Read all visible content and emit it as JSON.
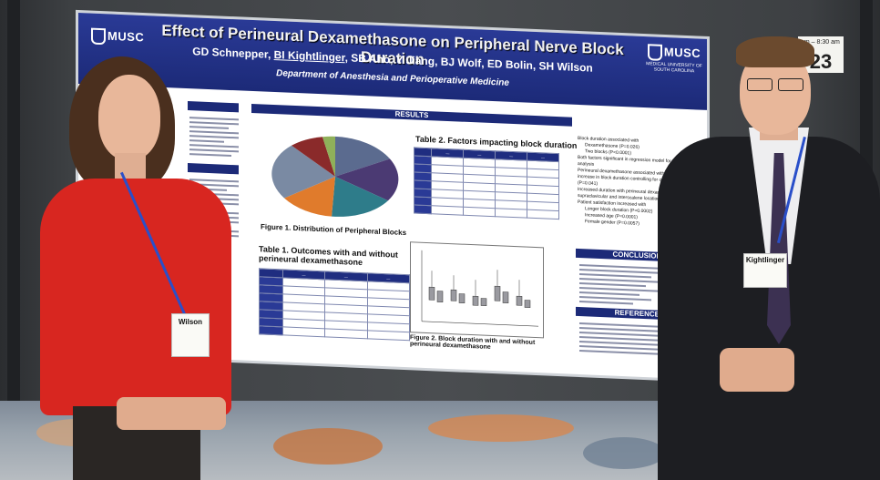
{
  "poster": {
    "title": "Effect of Perineural Dexamethasone on Peripheral Nerve Block Duration",
    "authors_before": "GD Schnepper, ",
    "authors_underlined": "BI Kightlinger",
    "authors_after": ", SB Aho, Y Jiang, BJ Wolf, ED Bolin, SH Wilson",
    "department": "Department of Anesthesia and Perioperative Medicine",
    "logo_left": "MUSC",
    "logo_right": "MUSC",
    "logo_right_sub": "MEDICAL UNIVERSITY OF SOUTH CAROLINA",
    "results_header": "RESULTS",
    "conclusions_header": "CONCLUSIONS",
    "references_header": "REFERENCES",
    "figure1_caption": "Figure 1. Distribution of Peripheral Blocks",
    "figure2_caption": "Figure 2. Block duration with and without perineural dexamethasone",
    "table1_title": "Table 1.  Outcomes with and without perineural dexamethasone",
    "table2_title": "Table 2. Factors impacting block duration",
    "bullets": [
      "Block duration associated with",
      "Dexamethasone (P=0.026)",
      "Two blocks (P<0.0001)",
      "Both factors significant in regression model for multivariate analysis",
      "Perineural dexamethasone associated with 1.9-hour mean increase in block duration controlling for other factors (P=0.041)",
      "Increased duration with perineural dexamethasone in supraclavicular and interscalene locations",
      "Patient satisfaction increased with",
      "Longer block duration (P=0.0002)",
      "Increased age (P=0.0001)",
      "Female gender (P=0.0057)"
    ]
  },
  "people": {
    "left_badge": "Wilson",
    "right_badge": "Kightlinger"
  },
  "sign": {
    "number": "23",
    "time": "am – 8:30 am"
  },
  "colors": {
    "poster_header": "#1c2a78",
    "sweater": "#d82620",
    "lanyard": "#2a4fc9",
    "suit": "#1d1e22"
  }
}
